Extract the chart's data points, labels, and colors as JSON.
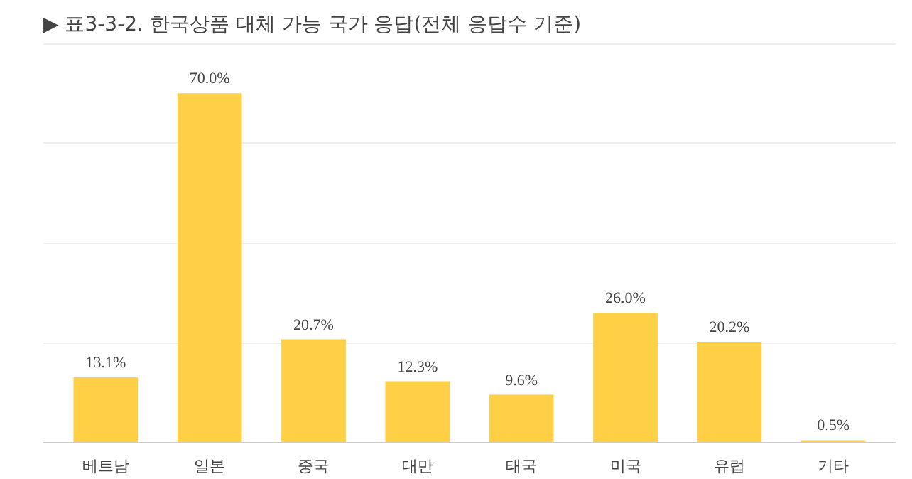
{
  "chart_data": {
    "type": "bar",
    "title": "▶ 표3-3-2. 한국상품 대체 가능 국가 응답(전체 응답수 기준)",
    "categories": [
      "베트남",
      "일본",
      "중국",
      "대만",
      "태국",
      "미국",
      "유럽",
      "기타"
    ],
    "values": [
      13.1,
      70.0,
      20.7,
      12.3,
      9.6,
      26.0,
      20.2,
      0.5
    ],
    "value_labels": [
      "13.1%",
      "70.0%",
      "20.7%",
      "12.3%",
      "9.6%",
      "26.0%",
      "20.2%",
      "0.5%"
    ],
    "color": "#ffd045",
    "ylim": [
      0,
      80
    ],
    "yticks": [
      {
        "value": 0,
        "label": null
      },
      {
        "value": 20,
        "label": null
      },
      {
        "value": 40,
        "label": null
      },
      {
        "value": 60,
        "label": null
      },
      {
        "value": 80,
        "label": null
      }
    ],
    "grid": "y",
    "tick_labels": "x"
  }
}
